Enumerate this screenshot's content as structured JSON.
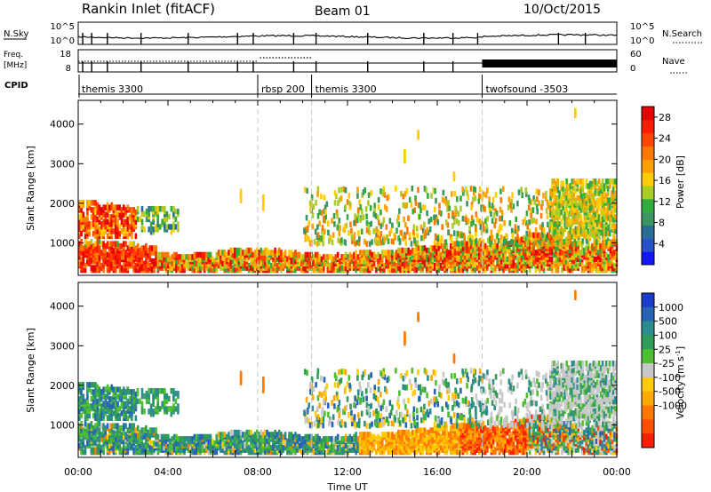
{
  "header": {
    "station": "Rankin Inlet (fitACF)",
    "beam": "Beam 01",
    "date": "10/Oct/2015"
  },
  "summary": {
    "nsky_label": "N.Sky",
    "nsearch_label": "N.Search",
    "noise_ticks": [
      "10^5",
      "10^0"
    ],
    "freq_label": "Freq.",
    "freq_unit": "[MHz]",
    "freq_ticks": [
      "18",
      "8"
    ],
    "nave_label": "Nave",
    "nave_ticks": [
      "60",
      "0"
    ],
    "cpid_label": "CPID"
  },
  "cpid_segments": [
    {
      "label": "themis 3300",
      "start_hour": 0.0
    },
    {
      "label": "rbsp 200",
      "start_hour": 8.0
    },
    {
      "label": "themis 3300",
      "start_hour": 10.4
    },
    {
      "label": "twofsound -3503",
      "start_hour": 18.0
    }
  ],
  "chart_data": [
    {
      "type": "heatmap",
      "quantity": "power",
      "ylabel": "Slant Range [km]",
      "yticks": [
        "1000",
        "2000",
        "3000",
        "4000"
      ],
      "ylim": [
        180,
        4600
      ],
      "xlim": [
        0,
        24
      ],
      "colorbar": {
        "label": "Power [dB]",
        "ticks": [
          "4",
          "8",
          "12",
          "16",
          "20",
          "24",
          "28"
        ],
        "range": [
          0,
          30
        ],
        "colors": [
          "#1414ff",
          "#2850c8",
          "#286e96",
          "#3c9664",
          "#32aa3c",
          "#aacc28",
          "#ffcc00",
          "#ffa000",
          "#ff7800",
          "#ff4600",
          "#ff1e00",
          "#e60000"
        ]
      }
    },
    {
      "type": "heatmap",
      "quantity": "velocity",
      "ylabel": "Slant Range [km]",
      "yticks": [
        "1000",
        "2000",
        "3000",
        "4000"
      ],
      "ylim": [
        180,
        4600
      ],
      "xlim": [
        0,
        24
      ],
      "xlabel": "Time UT",
      "xticks": [
        "00:00",
        "04:00",
        "08:00",
        "12:00",
        "16:00",
        "20:00",
        "00:00"
      ],
      "colorbar": {
        "label": "Velocity [m s",
        "label_sup": "-1",
        "label_close": "]",
        "ticks": [
          "1000",
          "500",
          "100",
          "25",
          "-25",
          "-100",
          "-500",
          "-1000"
        ],
        "colors": [
          "#1a3cc8",
          "#2864b4",
          "#2d8c8c",
          "#329b5a",
          "#50be32",
          "#c8c8c8",
          "#ffcc00",
          "#ffaa00",
          "#ff7800",
          "#ff5000",
          "#ff1e00"
        ]
      }
    }
  ]
}
